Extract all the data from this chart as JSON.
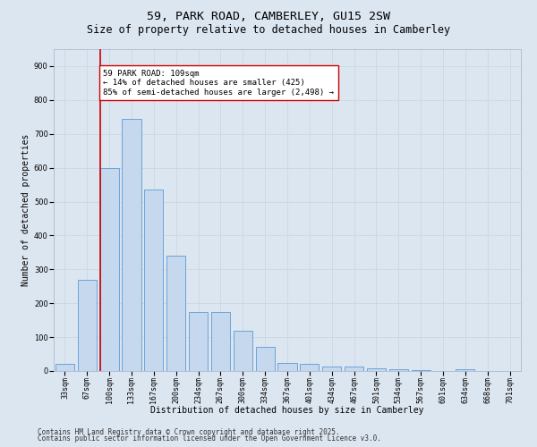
{
  "title_line1": "59, PARK ROAD, CAMBERLEY, GU15 2SW",
  "title_line2": "Size of property relative to detached houses in Camberley",
  "xlabel": "Distribution of detached houses by size in Camberley",
  "ylabel": "Number of detached properties",
  "categories": [
    "33sqm",
    "67sqm",
    "100sqm",
    "133sqm",
    "167sqm",
    "200sqm",
    "234sqm",
    "267sqm",
    "300sqm",
    "334sqm",
    "367sqm",
    "401sqm",
    "434sqm",
    "467sqm",
    "501sqm",
    "534sqm",
    "567sqm",
    "601sqm",
    "634sqm",
    "668sqm",
    "701sqm"
  ],
  "values": [
    20,
    270,
    600,
    745,
    535,
    340,
    175,
    175,
    120,
    70,
    25,
    20,
    12,
    12,
    7,
    5,
    3,
    0,
    5,
    0,
    0
  ],
  "bar_color": "#c5d8ed",
  "bar_edge_color": "#5b9bd5",
  "vline_color": "#cc0000",
  "vline_x_index": 2,
  "annotation_text": "59 PARK ROAD: 109sqm\n← 14% of detached houses are smaller (425)\n85% of semi-detached houses are larger (2,498) →",
  "annotation_box_color": "#ffffff",
  "annotation_box_edge": "#cc0000",
  "ylim": [
    0,
    950
  ],
  "yticks": [
    0,
    100,
    200,
    300,
    400,
    500,
    600,
    700,
    800,
    900
  ],
  "grid_color": "#c8d4e3",
  "bg_color": "#dce6f1",
  "plot_bg_color": "#dce6f1",
  "footer_line1": "Contains HM Land Registry data © Crown copyright and database right 2025.",
  "footer_line2": "Contains public sector information licensed under the Open Government Licence v3.0.",
  "title_fontsize": 9.5,
  "subtitle_fontsize": 8.5,
  "axis_label_fontsize": 7,
  "tick_fontsize": 6,
  "annotation_fontsize": 6.5,
  "footer_fontsize": 5.5
}
